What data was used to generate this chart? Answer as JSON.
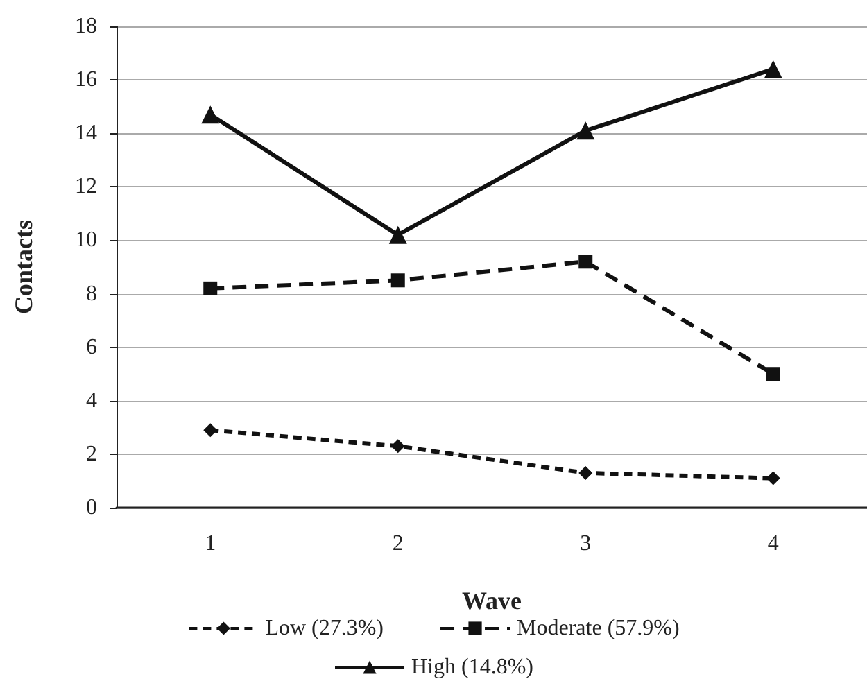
{
  "chart_data": {
    "type": "line",
    "xlabel": "Wave",
    "ylabel": "Contacts",
    "categories": [
      "1",
      "2",
      "3",
      "4"
    ],
    "series": [
      {
        "name": "Low (27.3%)",
        "color": "#111111",
        "values": [
          2.9,
          2.3,
          1.3,
          1.1
        ],
        "marker": "diamond",
        "line_style": "dotted"
      },
      {
        "name": "Moderate (57.9%)",
        "color": "#111111",
        "values": [
          8.2,
          8.5,
          9.2,
          5.0
        ],
        "marker": "square",
        "line_style": "dashed"
      },
      {
        "name": "High (14.8%)",
        "color": "#111111",
        "values": [
          14.7,
          10.2,
          14.1,
          16.4
        ],
        "marker": "triangle",
        "line_style": "solid"
      }
    ],
    "ylim": [
      0,
      18
    ],
    "yticks": [
      0,
      2,
      4,
      6,
      8,
      10,
      12,
      14,
      16,
      18
    ],
    "grid": "y",
    "legend": "bottom"
  }
}
